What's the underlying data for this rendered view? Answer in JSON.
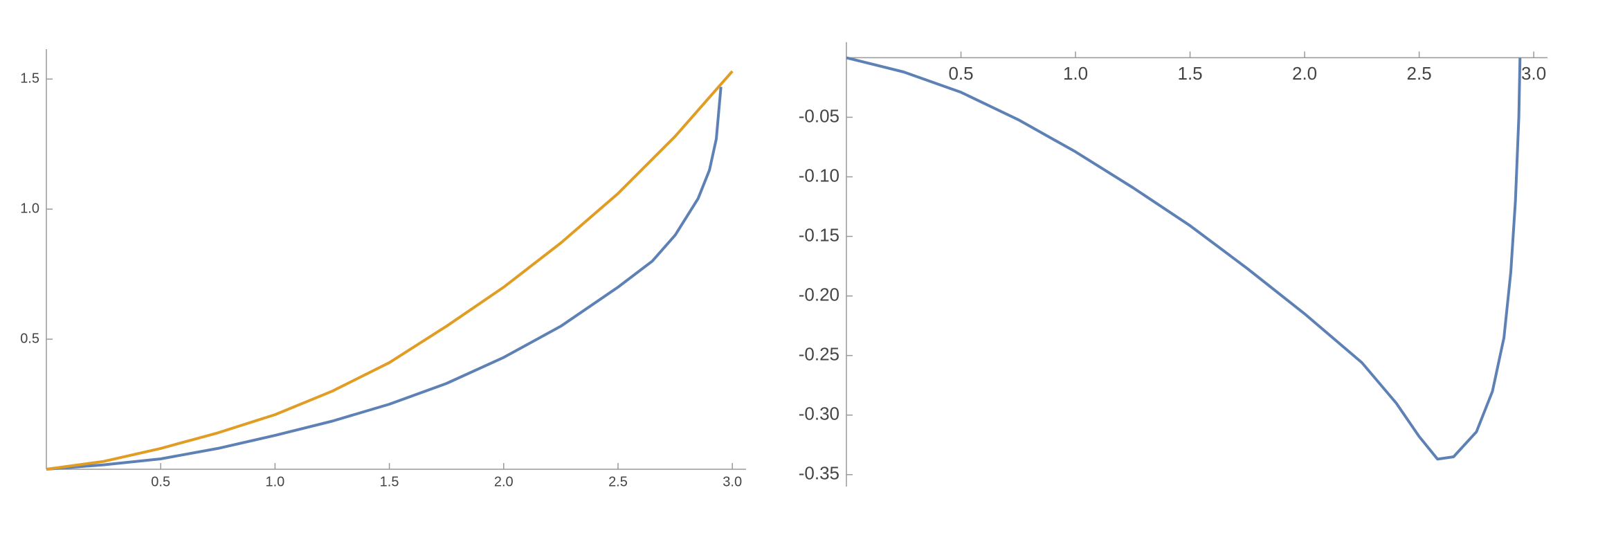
{
  "chart_data": [
    {
      "type": "line",
      "xlim": [
        0,
        3.06
      ],
      "ylim": [
        0,
        1.615
      ],
      "xticks": [
        {
          "value": 0.5,
          "label": "0.5"
        },
        {
          "value": 1,
          "label": "1.0"
        },
        {
          "value": 1.5,
          "label": "1.5"
        },
        {
          "value": 2,
          "label": "2.0"
        },
        {
          "value": 2.5,
          "label": "2.5"
        },
        {
          "value": 3,
          "label": "3.0"
        }
      ],
      "yticks": [
        {
          "value": 0.5,
          "label": "0.5"
        },
        {
          "value": 1,
          "label": "1.0"
        },
        {
          "value": 1.5,
          "label": "1.5"
        }
      ],
      "series": [
        {
          "color": "#5e81b5",
          "x": [
            0,
            0.25,
            0.5,
            0.75,
            1.0,
            1.25,
            1.5,
            1.75,
            2.0,
            2.25,
            2.5,
            2.65,
            2.75,
            2.85,
            2.9,
            2.93,
            2.95
          ],
          "values": [
            0,
            0.017,
            0.04,
            0.08,
            0.13,
            0.185,
            0.25,
            0.33,
            0.43,
            0.55,
            0.7,
            0.8,
            0.9,
            1.04,
            1.15,
            1.27,
            1.47
          ]
        },
        {
          "color": "#e19c24",
          "x": [
            0,
            0.25,
            0.5,
            0.75,
            1.0,
            1.25,
            1.5,
            1.75,
            2.0,
            2.25,
            2.5,
            2.75,
            3.0
          ],
          "values": [
            0,
            0.03,
            0.08,
            0.14,
            0.21,
            0.3,
            0.41,
            0.55,
            0.7,
            0.87,
            1.06,
            1.28,
            1.53
          ]
        }
      ]
    },
    {
      "type": "line",
      "xlim": [
        0,
        3.06
      ],
      "ylim": [
        -0.36,
        0.013
      ],
      "xticks": [
        {
          "value": 0.5,
          "label": "0.5"
        },
        {
          "value": 1,
          "label": "1.0"
        },
        {
          "value": 1.5,
          "label": "1.5"
        },
        {
          "value": 2,
          "label": "2.0"
        },
        {
          "value": 2.5,
          "label": "2.5"
        },
        {
          "value": 3,
          "label": "3.0"
        }
      ],
      "yticks": [
        {
          "value": -0.05,
          "label": "-0.05"
        },
        {
          "value": -0.1,
          "label": "-0.10"
        },
        {
          "value": -0.15,
          "label": "-0.15"
        },
        {
          "value": -0.2,
          "label": "-0.20"
        },
        {
          "value": -0.25,
          "label": "-0.25"
        },
        {
          "value": -0.3,
          "label": "-0.30"
        },
        {
          "value": -0.35,
          "label": "-0.35"
        }
      ],
      "series": [
        {
          "color": "#5e81b5",
          "x": [
            0,
            0.25,
            0.5,
            0.75,
            1.0,
            1.25,
            1.5,
            1.75,
            2.0,
            2.25,
            2.4,
            2.5,
            2.58,
            2.65,
            2.75,
            2.82,
            2.87,
            2.9,
            2.92,
            2.935,
            2.94
          ],
          "values": [
            0,
            -0.012,
            -0.029,
            -0.052,
            -0.079,
            -0.109,
            -0.141,
            -0.177,
            -0.215,
            -0.256,
            -0.29,
            -0.318,
            -0.337,
            -0.335,
            -0.314,
            -0.28,
            -0.235,
            -0.18,
            -0.12,
            -0.05,
            0
          ]
        }
      ]
    }
  ]
}
